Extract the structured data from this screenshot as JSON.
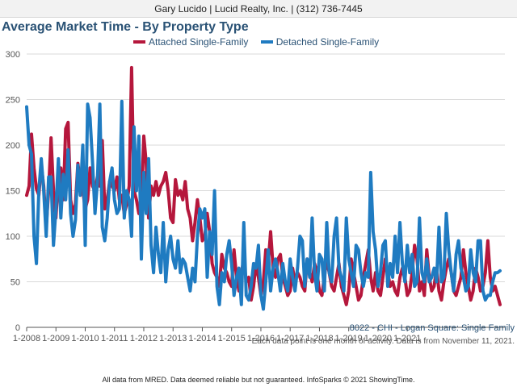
{
  "header": {
    "text": "Gary Lucido | Lucid Realty, Inc. | (312) 736-7445"
  },
  "title": "Average Market Time - By Property Type",
  "sub_caption": "8022 - CHI - Logan Square: Single Family",
  "note": "Each data point is one month of activity. Data is from November 11, 2021.",
  "footer": "All data from MRED. Data deemed reliable but not guaranteed. InfoSparks © 2021 ShowingTime.",
  "colors": {
    "attached": "#b5173c",
    "detached": "#1f7bc1",
    "grid": "#d9d9d9",
    "axis": "#555555"
  },
  "chart_data": {
    "type": "line",
    "title": "Average Market Time - By Property Type",
    "xlabel": "",
    "ylabel": "",
    "x_start": "2008-01",
    "x_ticks": [
      "1-2008",
      "1-2009",
      "1-2010",
      "1-2011",
      "1-2012",
      "1-2013",
      "1-2014",
      "1-2015",
      "1-2016",
      "1-2017",
      "1-2018",
      "1-2019",
      "1-2020",
      "1-2021"
    ],
    "y_ticks": [
      0,
      50,
      100,
      150,
      200,
      250,
      300
    ],
    "ylim": [
      0,
      300
    ],
    "grid": true,
    "legend": "top",
    "series": [
      {
        "name": "Attached Single-Family",
        "values": [
          145,
          155,
          212,
          175,
          152,
          145,
          178,
          155,
          110,
          150,
          208,
          150,
          120,
          165,
          175,
          140,
          218,
          225,
          140,
          125,
          135,
          180,
          160,
          150,
          130,
          140,
          175,
          155,
          150,
          165,
          155,
          205,
          130,
          140,
          160,
          155,
          150,
          165,
          140,
          145,
          125,
          135,
          155,
          285,
          150,
          140,
          125,
          130,
          210,
          180,
          120,
          155,
          145,
          160,
          145,
          155,
          160,
          170,
          150,
          120,
          115,
          162,
          145,
          150,
          140,
          160,
          130,
          120,
          95,
          115,
          140,
          120,
          95,
          100,
          125,
          105,
          70,
          60,
          55,
          45,
          80,
          65,
          60,
          50,
          45,
          85,
          55,
          40,
          60,
          75,
          50,
          55,
          30,
          45,
          70,
          55,
          35,
          50,
          85,
          70,
          105,
          65,
          55,
          75,
          80,
          55,
          45,
          35,
          40,
          65,
          50,
          60,
          55,
          45,
          40,
          75,
          60,
          50,
          70,
          60,
          40,
          35,
          55,
          75,
          60,
          45,
          40,
          55,
          70,
          45,
          35,
          25,
          40,
          75,
          60,
          45,
          30,
          35,
          55,
          70,
          85,
          55,
          40,
          60,
          40,
          35,
          55,
          75,
          60,
          45,
          50,
          40,
          35,
          55,
          65,
          55,
          35,
          40,
          60,
          90,
          75,
          40,
          50,
          35,
          85,
          55,
          40,
          45,
          65,
          40,
          30,
          50,
          65,
          75,
          60,
          40,
          35,
          45,
          55,
          85,
          60,
          45,
          30,
          40,
          65,
          55,
          40,
          45,
          60,
          95,
          55,
          40,
          45,
          35,
          25,
          20,
          30,
          45,
          40
        ],
        "max_points": 166
      },
      {
        "name": "Detached Single-Family",
        "values": [
          242,
          200,
          190,
          100,
          70,
          150,
          185,
          150,
          100,
          165,
          165,
          90,
          130,
          185,
          120,
          168,
          140,
          195,
          125,
          100,
          118,
          178,
          145,
          200,
          90,
          245,
          230,
          180,
          125,
          160,
          245,
          110,
          95,
          120,
          160,
          175,
          140,
          125,
          130,
          248,
          120,
          150,
          140,
          100,
          220,
          150,
          210,
          75,
          170,
          125,
          185,
          90,
          60,
          110,
          80,
          60,
          115,
          50,
          85,
          100,
          75,
          65,
          95,
          60,
          75,
          70,
          55,
          40,
          65,
          50,
          100,
          130,
          120,
          130,
          55,
          105,
          80,
          150,
          45,
          25,
          60,
          50,
          80,
          95,
          70,
          35,
          55,
          65,
          25,
          115,
          35,
          30,
          45,
          70,
          65,
          90,
          35,
          20,
          50,
          85,
          40,
          65,
          75,
          60,
          40,
          70,
          50,
          40,
          75,
          55,
          40,
          65,
          100,
          95,
          45,
          75,
          55,
          120,
          60,
          40,
          80,
          75,
          40,
          115,
          60,
          50,
          100,
          120,
          65,
          55,
          40,
          120,
          75,
          60,
          45,
          90,
          85,
          60,
          45,
          60,
          55,
          170,
          105,
          85,
          45,
          60,
          90,
          95,
          45,
          70,
          55,
          100,
          60,
          115,
          70,
          50,
          90,
          60,
          80,
          45,
          50,
          120,
          60,
          50,
          75,
          50,
          55,
          65,
          50,
          110,
          50,
          55,
          125,
          85,
          60,
          40,
          80,
          95,
          65,
          55,
          40,
          45,
          85,
          60,
          50,
          95,
          95,
          40,
          30,
          35,
          35,
          50,
          60,
          60,
          62
        ]
      }
    ]
  }
}
